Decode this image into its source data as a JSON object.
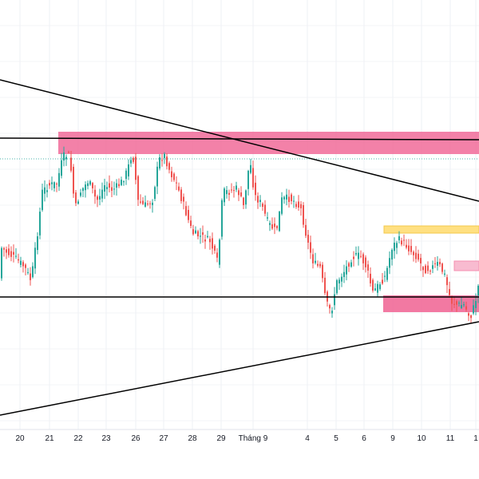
{
  "chart_data": {
    "type": "candlestick",
    "xaxis": {
      "tick_labels": [
        "20",
        "21",
        "22",
        "23",
        "26",
        "27",
        "28",
        "29",
        "Tháng 9",
        "4",
        "5",
        "6",
        "9",
        "10",
        "11",
        "1"
      ]
    },
    "grid": true,
    "colors": {
      "up": "#26a69a",
      "down": "#ef5350",
      "supply_zone": "#f06292",
      "demand_zone": "#f06292",
      "target_zone": "#ffe082",
      "minor_zone": "#f8bbd0",
      "trendline": "#000000",
      "dotted_level": "#4db6ac"
    },
    "annotations": [
      {
        "type": "trendline",
        "description": "descending resistance line"
      },
      {
        "type": "trendline",
        "description": "ascending support line"
      },
      {
        "type": "horizontal_line",
        "description": "upper horizontal level"
      },
      {
        "type": "horizontal_line",
        "description": "lower horizontal level"
      },
      {
        "type": "zone",
        "description": "upper supply zone"
      },
      {
        "type": "zone",
        "description": "lower demand zone"
      },
      {
        "type": "zone",
        "description": "yellow target zone"
      },
      {
        "type": "zone",
        "description": "light pink small zone"
      },
      {
        "type": "dotted_line",
        "description": "dotted reference level"
      }
    ]
  }
}
